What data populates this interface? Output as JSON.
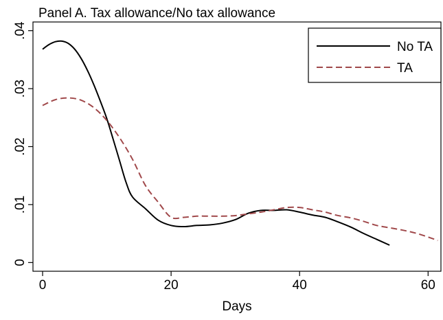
{
  "chart_data": {
    "type": "line",
    "title": "Panel A. Tax allowance/No tax allowance",
    "xlabel": "Days",
    "ylabel": "",
    "xlim": [
      -1.5,
      62
    ],
    "ylim": [
      -0.0015,
      0.0415
    ],
    "x_ticks": [
      0,
      20,
      40,
      60
    ],
    "x_tick_labels": [
      "0",
      "20",
      "40",
      "60"
    ],
    "y_ticks": [
      0,
      0.01,
      0.02,
      0.03,
      0.04
    ],
    "y_tick_labels": [
      "0",
      ".01",
      ".02",
      ".03",
      ".04"
    ],
    "grid": false,
    "legend": "top-right",
    "series": [
      {
        "name": "No TA",
        "color": "#000000",
        "style": "solid",
        "x": [
          0,
          1,
          2,
          3,
          4,
          5,
          6,
          7,
          8,
          9,
          10,
          11,
          12,
          13,
          14,
          16,
          18,
          20,
          22,
          24,
          26,
          28,
          30,
          32,
          34,
          36,
          38,
          40,
          42,
          44,
          46,
          48,
          50,
          52,
          54
        ],
        "y": [
          0.0368,
          0.0376,
          0.0381,
          0.0382,
          0.0378,
          0.0368,
          0.0352,
          0.0331,
          0.0306,
          0.0278,
          0.0248,
          0.0212,
          0.0175,
          0.0138,
          0.0113,
          0.0093,
          0.0073,
          0.0064,
          0.0062,
          0.0064,
          0.0065,
          0.0068,
          0.0074,
          0.0085,
          0.009,
          0.009,
          0.0091,
          0.0087,
          0.0082,
          0.0078,
          0.007,
          0.0061,
          0.005,
          0.004,
          0.003
        ]
      },
      {
        "name": "TA",
        "color": "#A0484A",
        "style": "dashed",
        "x": [
          0,
          2,
          4,
          6,
          8,
          10,
          12,
          14,
          16,
          18,
          20,
          22,
          24,
          26,
          28,
          30,
          32,
          34,
          36,
          38,
          40,
          42,
          44,
          46,
          48,
          50,
          52,
          54,
          56,
          58,
          60,
          61.5
        ],
        "y": [
          0.0271,
          0.0281,
          0.0284,
          0.028,
          0.0267,
          0.0245,
          0.0215,
          0.0178,
          0.0133,
          0.0104,
          0.0078,
          0.0078,
          0.008,
          0.008,
          0.008,
          0.0081,
          0.0084,
          0.0087,
          0.0091,
          0.0095,
          0.0095,
          0.0091,
          0.0087,
          0.0081,
          0.0077,
          0.0071,
          0.0064,
          0.006,
          0.0056,
          0.0051,
          0.0044,
          0.0038
        ]
      }
    ]
  }
}
